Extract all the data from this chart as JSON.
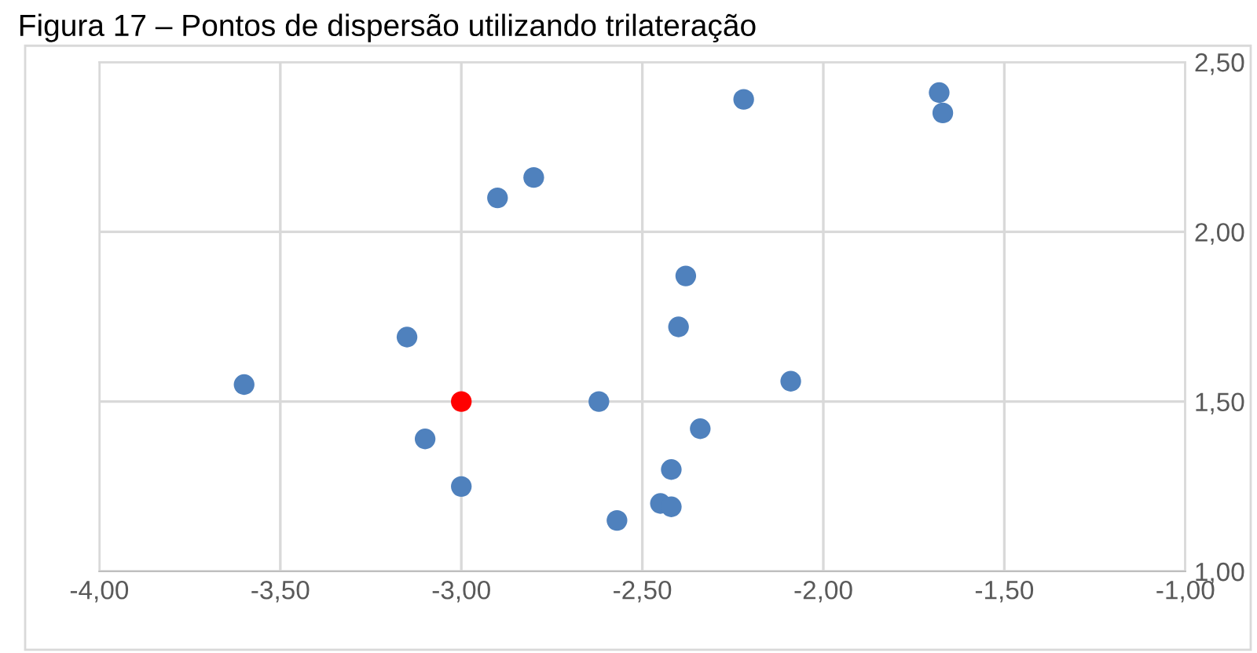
{
  "chart_data": {
    "type": "scatter",
    "title": "Figura 17 – Pontos de dispersão utilizando trilateração",
    "xlim": [
      -4,
      -1
    ],
    "xticks": [
      {
        "value": -4,
        "label": "-4,00"
      },
      {
        "value": -3.5,
        "label": "-3,50"
      },
      {
        "value": -3,
        "label": "-3,00"
      },
      {
        "value": -2.5,
        "label": "-2,50"
      },
      {
        "value": -2,
        "label": "-2,00"
      },
      {
        "value": -1.5,
        "label": "-1,50"
      },
      {
        "value": -1,
        "label": "-1,00"
      }
    ],
    "ylim": [
      1,
      2.5
    ],
    "yticks": [
      {
        "value": 1,
        "label": "1,00"
      },
      {
        "value": 1.5,
        "label": "1,50"
      },
      {
        "value": 2,
        "label": "2,00"
      },
      {
        "value": 2.5,
        "label": "2,50"
      }
    ],
    "grid": true,
    "marker": "circle",
    "series": [
      {
        "color": "#4f81bd",
        "x": [
          -3.6,
          -3.15,
          -3.1,
          -3.0,
          -2.9,
          -2.8,
          -2.62,
          -2.57,
          -2.45,
          -2.42,
          -2.42,
          -2.4,
          -2.38,
          -2.34,
          -2.22,
          -2.09,
          -1.68,
          -1.67
        ],
        "values": [
          1.55,
          1.69,
          1.39,
          1.25,
          2.1,
          2.16,
          1.5,
          1.15,
          1.2,
          1.19,
          1.3,
          1.72,
          1.87,
          1.42,
          2.39,
          1.56,
          2.41,
          2.35
        ]
      },
      {
        "color": "#ff0000",
        "x": [
          -3.0
        ],
        "values": [
          1.5
        ]
      }
    ]
  }
}
